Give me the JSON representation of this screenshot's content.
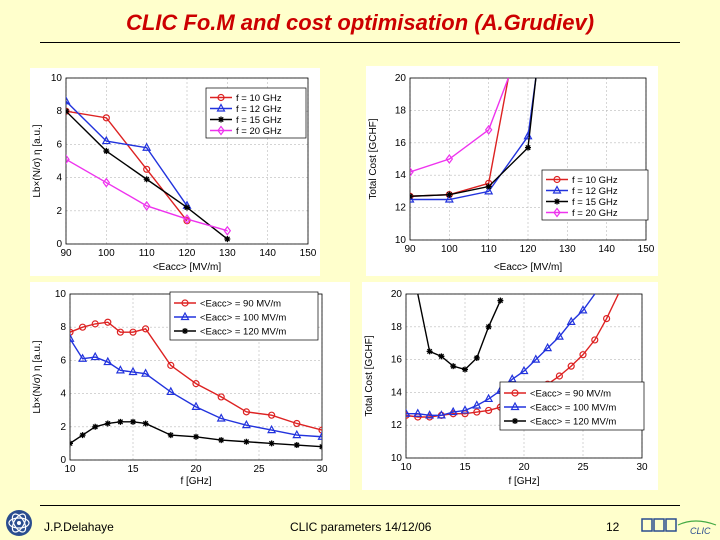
{
  "slide": {
    "title": "CLIC Fo.M and cost optimisation (A.Grudiev)",
    "footer_left": "J.P.Delahaye",
    "footer_center": "CLIC parameters 14/12/06",
    "page_number": "12",
    "logo_text": "CLIC"
  },
  "chart_data": [
    {
      "id": "fom-vs-gradient",
      "type": "line",
      "title": "",
      "xlabel": "<Eacc> [MV/m]",
      "ylabel": "Lb×(N/σ) η [a.u.]",
      "xlim": [
        90,
        150
      ],
      "ylim": [
        0,
        10
      ],
      "xticks": [
        "90",
        "100",
        "110",
        "120",
        "130",
        "140",
        "150"
      ],
      "yticks": [
        "0",
        "2",
        "4",
        "6",
        "8",
        "10"
      ],
      "grid": true,
      "legend_position": "top-right",
      "x": [
        90,
        100,
        110,
        120,
        130
      ],
      "series": [
        {
          "name": "f = 10 GHz",
          "color": "#dd2222",
          "marker": "circle",
          "values": [
            8.0,
            7.6,
            4.5,
            1.4,
            null
          ]
        },
        {
          "name": "f = 12 GHz",
          "color": "#2233dd",
          "marker": "triangle",
          "values": [
            8.6,
            6.2,
            5.8,
            2.3,
            null
          ]
        },
        {
          "name": "f = 15 GHz",
          "color": "#000000",
          "marker": "star",
          "values": [
            8.0,
            5.6,
            3.9,
            2.2,
            0.3
          ]
        },
        {
          "name": "f = 20 GHz",
          "color": "#ee33ee",
          "marker": "diamond",
          "values": [
            5.1,
            3.7,
            2.3,
            1.5,
            0.8
          ]
        }
      ]
    },
    {
      "id": "cost-vs-gradient",
      "type": "line",
      "title": "",
      "xlabel": "<Eacc> [MV/m]",
      "ylabel": "Total Cost [GCHF]",
      "xlim": [
        90,
        150
      ],
      "ylim": [
        10,
        20
      ],
      "xticks": [
        "90",
        "100",
        "110",
        "120",
        "130",
        "140",
        "150"
      ],
      "yticks": [
        "10",
        "12",
        "14",
        "16",
        "18",
        "20"
      ],
      "grid": true,
      "legend_position": "bottom-right",
      "x": [
        90,
        100,
        110,
        115,
        120,
        122
      ],
      "series": [
        {
          "name": "f = 10 GHz",
          "color": "#dd2222",
          "marker": "circle",
          "values": [
            12.7,
            12.8,
            13.5,
            20.0,
            null,
            null
          ]
        },
        {
          "name": "f = 12 GHz",
          "color": "#2233dd",
          "marker": "triangle",
          "values": [
            12.5,
            12.5,
            13.0,
            null,
            16.4,
            20.0
          ]
        },
        {
          "name": "f = 15 GHz",
          "color": "#000000",
          "marker": "star",
          "values": [
            12.7,
            12.8,
            13.3,
            null,
            15.7,
            20.0
          ]
        },
        {
          "name": "f = 20 GHz",
          "color": "#ee33ee",
          "marker": "diamond",
          "values": [
            14.2,
            15.0,
            16.8,
            20.0,
            null,
            null
          ]
        }
      ]
    },
    {
      "id": "fom-vs-frequency",
      "type": "line",
      "title": "",
      "xlabel": "f [GHz]",
      "ylabel": "Lb×(N/σ) η [a.u.]",
      "xlim": [
        10,
        30
      ],
      "ylim": [
        0,
        10
      ],
      "xticks": [
        "10",
        "15",
        "20",
        "25",
        "30"
      ],
      "yticks": [
        "0",
        "2",
        "4",
        "6",
        "8",
        "10"
      ],
      "grid": true,
      "legend_position": "top-right",
      "x": [
        10,
        11,
        12,
        13,
        14,
        15,
        16,
        18,
        20,
        22,
        24,
        26,
        28,
        30
      ],
      "series": [
        {
          "name": "<Eacc> = 90 MV/m",
          "color": "#dd2222",
          "marker": "circle",
          "values": [
            7.7,
            8.0,
            8.2,
            8.3,
            7.7,
            7.7,
            7.9,
            5.7,
            4.6,
            3.8,
            2.9,
            2.7,
            2.2,
            1.8
          ]
        },
        {
          "name": "<Eacc> = 100 MV/m",
          "color": "#2233dd",
          "marker": "triangle",
          "values": [
            7.3,
            6.1,
            6.2,
            5.9,
            5.4,
            5.3,
            5.2,
            4.1,
            3.2,
            2.5,
            2.1,
            1.8,
            1.5,
            1.4
          ]
        },
        {
          "name": "<Eacc> = 120 MV/m",
          "color": "#000000",
          "marker": "star",
          "values": [
            1.0,
            1.5,
            2.0,
            2.2,
            2.3,
            2.3,
            2.2,
            1.5,
            1.4,
            1.2,
            1.1,
            1.0,
            0.9,
            0.8
          ]
        }
      ]
    },
    {
      "id": "cost-vs-frequency",
      "type": "line",
      "title": "",
      "xlabel": "f [GHz]",
      "ylabel": "Total Cost [GCHF]",
      "xlim": [
        10,
        30
      ],
      "ylim": [
        10,
        20
      ],
      "xticks": [
        "10",
        "15",
        "20",
        "25",
        "30"
      ],
      "yticks": [
        "10",
        "12",
        "14",
        "16",
        "18",
        "20"
      ],
      "grid": true,
      "legend_position": "bottom-right",
      "series": [
        {
          "name": "<Eacc> = 90 MV/m",
          "color": "#dd2222",
          "marker": "circle",
          "x": [
            10,
            11,
            12,
            13,
            14,
            15,
            16,
            17,
            18,
            19,
            20,
            21,
            22,
            23,
            24,
            25,
            26,
            27,
            28
          ],
          "values": [
            12.6,
            12.5,
            12.5,
            12.6,
            12.7,
            12.7,
            12.8,
            12.9,
            13.1,
            13.3,
            13.6,
            14.0,
            14.5,
            15.0,
            15.6,
            16.3,
            17.2,
            18.5,
            20.0
          ]
        },
        {
          "name": "<Eacc> = 100 MV/m",
          "color": "#2233dd",
          "marker": "triangle",
          "x": [
            10,
            11,
            12,
            13,
            14,
            15,
            16,
            17,
            18,
            19,
            20,
            21,
            22,
            23,
            24,
            25,
            26
          ],
          "values": [
            12.7,
            12.7,
            12.6,
            12.6,
            12.8,
            12.9,
            13.2,
            13.6,
            14.1,
            14.8,
            15.3,
            16.0,
            16.7,
            17.4,
            18.3,
            19.0,
            20.0
          ]
        },
        {
          "name": "<Eacc> = 120 MV/m",
          "color": "#000000",
          "marker": "star",
          "x": [
            11,
            12,
            13,
            14,
            15,
            16,
            17,
            18
          ],
          "values": [
            20.0,
            16.5,
            16.2,
            15.6,
            15.4,
            16.1,
            18.0,
            19.6
          ]
        }
      ]
    }
  ]
}
